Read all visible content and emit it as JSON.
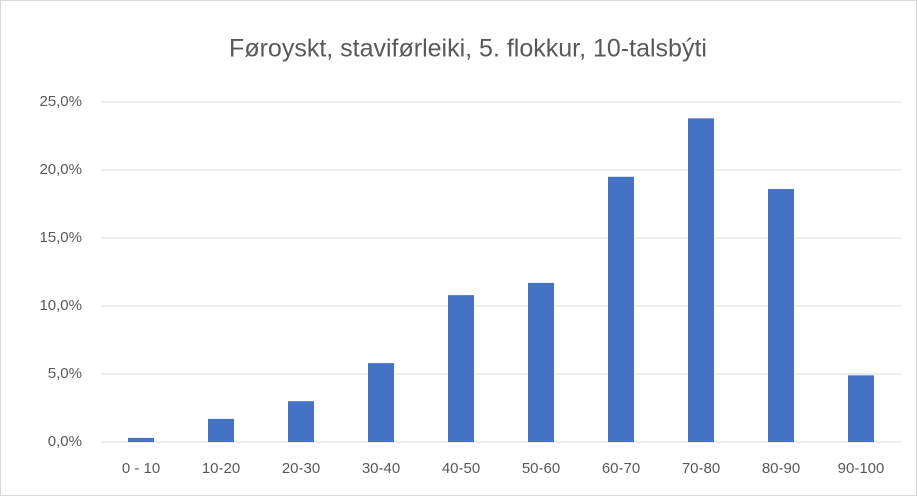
{
  "chart_data": {
    "type": "bar",
    "title": "Føroyskt, staviførleiki, 5. flokkur, 10-talsbýti",
    "categories": [
      "0 - 10",
      "10-20",
      "20-30",
      "30-40",
      "40-50",
      "50-60",
      "60-70",
      "70-80",
      "80-90",
      "90-100"
    ],
    "values": [
      0.3,
      1.7,
      3.0,
      5.8,
      10.8,
      11.7,
      19.5,
      23.8,
      18.6,
      4.9
    ],
    "color": "#4472c4",
    "ylim": [
      0,
      25
    ],
    "yticks": [
      {
        "value": 0,
        "label": "0,0%"
      },
      {
        "value": 5,
        "label": "5,0%"
      },
      {
        "value": 10,
        "label": "10,0%"
      },
      {
        "value": 15,
        "label": "15,0%"
      },
      {
        "value": 20,
        "label": "20,0%"
      },
      {
        "value": 25,
        "label": "25,0%"
      }
    ],
    "grid": true
  }
}
